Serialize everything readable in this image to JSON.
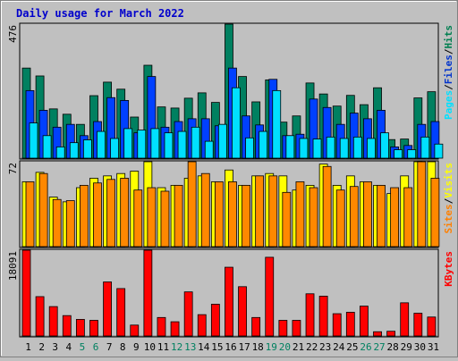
{
  "chart_data": {
    "type": "bar",
    "title": "Daily usage for March 2022",
    "categories": [
      "1",
      "2",
      "3",
      "4",
      "5",
      "6",
      "7",
      "8",
      "9",
      "10",
      "11",
      "12",
      "13",
      "14",
      "15",
      "16",
      "17",
      "18",
      "19",
      "20",
      "21",
      "22",
      "23",
      "24",
      "25",
      "26",
      "27",
      "28",
      "29",
      "30",
      "31"
    ],
    "weekend_days": [
      "5",
      "6",
      "12",
      "13",
      "19",
      "20",
      "26",
      "27"
    ],
    "panels": [
      {
        "max_label": "476",
        "ymax": 476,
        "legend": [
          "Pages",
          "/",
          "Files",
          "/",
          "Hits"
        ],
        "legend_colors": [
          "#00e0ff",
          "#000000",
          "#0033cc",
          "#000000",
          "#007f50"
        ],
        "series": [
          {
            "name": "Hits",
            "color": "#008060",
            "values": [
              320,
              292,
              175,
              156,
              120,
              222,
              270,
              245,
              146,
              330,
              182,
              178,
              213,
              232,
              198,
              476,
              290,
              200,
              278,
              128,
              150,
              267,
              228,
              185,
              223,
              190,
              250,
              66,
              68,
              214,
              236
            ]
          },
          {
            "name": "Files",
            "color": "#0040ff",
            "values": [
              240,
              170,
              110,
              120,
              80,
              130,
              215,
              205,
              90,
              290,
              110,
              130,
              140,
              140,
              115,
              320,
              150,
              118,
              280,
              80,
              85,
              210,
              180,
              120,
              160,
              140,
              170,
              40,
              45,
              120,
              130
            ]
          },
          {
            "name": "Pages",
            "color": "#00e0ff",
            "values": [
              125,
              80,
              40,
              55,
              65,
              95,
              70,
              105,
              100,
              105,
              90,
              95,
              110,
              60,
              120,
              250,
              72,
              95,
              240,
              80,
              70,
              68,
              75,
              70,
              75,
              70,
              90,
              30,
              30,
              75,
              50
            ]
          }
        ]
      },
      {
        "max_label": "72",
        "ymax": 72,
        "legend": [
          "Sites",
          "/",
          "Visits"
        ],
        "legend_colors": [
          "#ff8000",
          "#000000",
          "#ffff00"
        ],
        "series": [
          {
            "name": "Visits",
            "color": "#ffff00",
            "values": [
              55,
              63,
              42,
              38,
              50,
              58,
              60,
              62,
              64,
              72,
              50,
              52,
              58,
              60,
              55,
              65,
              52,
              60,
              62,
              60,
              48,
              52,
              70,
              52,
              60,
              55,
              52,
              45,
              60,
              72,
              72
            ]
          },
          {
            "name": "Sites",
            "color": "#ff8800",
            "values": [
              55,
              62,
              40,
              39,
              52,
              54,
              57,
              58,
              48,
              50,
              47,
              52,
              72,
              62,
              55,
              55,
              52,
              60,
              60,
              46,
              55,
              50,
              68,
              48,
              51,
              55,
              52,
              50,
              50,
              72,
              58
            ]
          }
        ]
      },
      {
        "max_label": "18091",
        "ymax": 18091,
        "legend": [
          "KBytes"
        ],
        "legend_colors": [
          "#ff0000"
        ],
        "series": [
          {
            "name": "KBytes",
            "color": "#ff0000",
            "values": [
              18091,
              8300,
              6200,
              4300,
              3500,
              3300,
              11400,
              10000,
              2300,
              18091,
              3900,
              3000,
              9300,
              4500,
              6700,
              14500,
              10400,
              3900,
              16600,
              3300,
              3300,
              8900,
              8400,
              4700,
              5000,
              6300,
              900,
              1000,
              7000,
              4800,
              4000
            ]
          }
        ]
      }
    ]
  }
}
